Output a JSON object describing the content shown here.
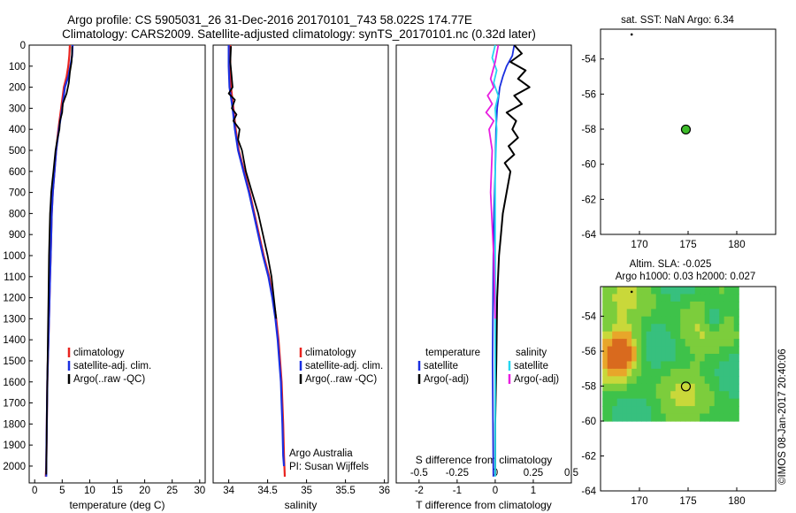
{
  "header": {
    "line1": "Argo profile: CS 5905031_26 31-Dec-2016 20170101_743 58.022S 174.77E",
    "line2": "Climatology: CARS2009. Satellite-adjusted climatology: synTS_20170101.nc (0.32d later)"
  },
  "colors": {
    "climatology": "#e8231f",
    "satellite": "#1a2fe0",
    "argo": "#000000",
    "salinity_satellite": "#25d7f0",
    "salinity_argo": "#e81ee0",
    "float_marker": "#3dbb2a"
  },
  "footer_credit": "©IMOS 08-Jan-2017 20:40:06",
  "chart_data": [
    {
      "type": "line",
      "id": "temperature",
      "xlabel": "temperature (deg C)",
      "xlim": [
        -1,
        31
      ],
      "xticks": [
        "0",
        "5",
        "10",
        "15",
        "20",
        "25",
        "30"
      ],
      "ylim": [
        0,
        2080
      ],
      "yticks": [
        "0",
        "100",
        "200",
        "300",
        "400",
        "500",
        "600",
        "700",
        "800",
        "900",
        "1000",
        "1100",
        "1200",
        "1300",
        "1400",
        "1500",
        "1600",
        "1700",
        "1800",
        "1900",
        "2000"
      ],
      "legend": [
        "climatology",
        "satellite-adj. clim.",
        "Argo(..raw -QC)"
      ],
      "series": [
        {
          "name": "climatology",
          "color_key": "climatology",
          "x": [
            6.4,
            6.3,
            6.1,
            5.8,
            5.3,
            4.8,
            4.3,
            3.9,
            3.6,
            3.3,
            3.1,
            2.9,
            2.8,
            2.7,
            2.6,
            2.5,
            2.4,
            2.3,
            2.2,
            2.1,
            2.0
          ],
          "y": [
            0,
            50,
            100,
            150,
            200,
            300,
            400,
            500,
            600,
            700,
            800,
            1000,
            1100,
            1200,
            1300,
            1400,
            1500,
            1600,
            1800,
            2000,
            2050
          ]
        },
        {
          "name": "satellite-adj. clim.",
          "color_key": "satellite",
          "x": [
            6.9,
            6.8,
            6.5,
            6.1,
            5.5,
            5.0,
            4.4,
            3.9,
            3.6,
            3.3,
            3.1,
            2.9,
            2.8,
            2.7,
            2.6,
            2.5,
            2.4,
            2.3,
            2.2,
            2.1,
            2.1
          ],
          "y": [
            0,
            50,
            100,
            150,
            200,
            300,
            400,
            500,
            600,
            700,
            800,
            1000,
            1100,
            1200,
            1300,
            1400,
            1500,
            1600,
            1800,
            2000,
            2050
          ]
        },
        {
          "name": "Argo(..raw -QC)",
          "color_key": "argo",
          "x": [
            6.8,
            6.8,
            6.7,
            6.4,
            6.2,
            5.8,
            5.1,
            5.0,
            4.6,
            4.5,
            4.1,
            3.8,
            3.6,
            3.4,
            3.2,
            3.0,
            2.9,
            2.8,
            2.7,
            2.6,
            2.5,
            2.4,
            2.3,
            2.2,
            2.1
          ],
          "y": [
            5,
            40,
            80,
            130,
            180,
            230,
            280,
            320,
            360,
            400,
            450,
            500,
            550,
            600,
            650,
            700,
            750,
            800,
            900,
            1000,
            1200,
            1400,
            1600,
            1800,
            2040
          ]
        }
      ]
    },
    {
      "type": "line",
      "id": "salinity",
      "xlabel": "salinity",
      "xlim": [
        33.8,
        36.05
      ],
      "xticks": [
        "34",
        "34.5",
        "35",
        "35.5",
        "36"
      ],
      "ylim": [
        0,
        2080
      ],
      "legend": [
        "climatology",
        "satellite-adj. clim.",
        "Argo(..raw -QC)"
      ],
      "annotation": [
        "Argo Australia",
        "PI: Susan Wijffels"
      ],
      "series": [
        {
          "name": "climatology",
          "color_key": "climatology",
          "x": [
            34.02,
            34.02,
            34.03,
            34.06,
            34.09,
            34.13,
            34.2,
            34.27,
            34.33,
            34.39,
            34.45,
            34.52,
            34.57,
            34.61,
            34.64,
            34.66,
            34.68,
            34.69,
            34.7,
            34.71,
            34.72
          ],
          "y": [
            0,
            100,
            200,
            300,
            400,
            500,
            600,
            700,
            800,
            900,
            1000,
            1100,
            1200,
            1300,
            1400,
            1500,
            1600,
            1700,
            1800,
            1950,
            2050
          ]
        },
        {
          "name": "satellite-adj. clim.",
          "color_key": "satellite",
          "x": [
            34.0,
            34.0,
            34.01,
            34.05,
            34.08,
            34.12,
            34.19,
            34.26,
            34.32,
            34.38,
            34.44,
            34.51,
            34.56,
            34.6,
            34.63,
            34.65,
            34.67,
            34.68,
            34.69,
            34.7,
            34.71
          ],
          "y": [
            0,
            100,
            200,
            300,
            400,
            500,
            600,
            700,
            800,
            900,
            1000,
            1100,
            1200,
            1300,
            1400,
            1500,
            1600,
            1700,
            1800,
            1950,
            2000
          ]
        },
        {
          "name": "Argo(..raw -QC)",
          "color_key": "argo",
          "x": [
            34.03,
            34.02,
            34.05,
            34.0,
            34.08,
            34.04,
            34.1,
            34.06,
            34.14,
            34.12,
            34.17,
            34.22,
            34.3,
            34.38,
            34.44,
            34.5,
            34.55,
            34.58,
            34.61
          ],
          "y": [
            5,
            80,
            200,
            230,
            260,
            300,
            330,
            360,
            400,
            450,
            500,
            600,
            700,
            800,
            900,
            1000,
            1100,
            1200,
            1300
          ]
        }
      ]
    },
    {
      "type": "line",
      "id": "difference",
      "xlabel": "T difference from climatology",
      "xlabel_top": "S difference from climatology",
      "xlim_T": [
        -2.6,
        2.0
      ],
      "xticks_T": [
        "-2",
        "-1",
        "0",
        "1"
      ],
      "xlim_S": [
        -0.65,
        0.5
      ],
      "xticks_S": [
        "-0.5",
        "-0.25",
        "0",
        "0.25",
        "0.5"
      ],
      "ylim": [
        0,
        2080
      ],
      "legend_temperature": [
        "temperature",
        "satellite",
        "Argo(-adj)"
      ],
      "legend_salinity": [
        "salinity",
        "satellite",
        "Argo(-adj)"
      ],
      "series": [
        {
          "name": "T satellite",
          "color_key": "satellite",
          "axis": "T",
          "x": [
            0.5,
            0.45,
            0.3,
            0.2,
            0.12,
            0.05,
            0.02,
            0.0,
            -0.03,
            -0.05,
            -0.07,
            -0.05
          ],
          "y": [
            0,
            50,
            100,
            150,
            200,
            300,
            400,
            600,
            800,
            1000,
            1500,
            2050
          ]
        },
        {
          "name": "T Argo(-adj)",
          "color_key": "argo",
          "axis": "T",
          "x": [
            0.5,
            0.7,
            0.4,
            0.8,
            0.6,
            0.9,
            0.5,
            0.7,
            0.3,
            0.55,
            0.45,
            0.6,
            0.35,
            0.5,
            0.25,
            0.4,
            0.3,
            0.2,
            0.15,
            0.1,
            0.05,
            0.03,
            0.0,
            0.0
          ],
          "y": [
            0,
            40,
            80,
            120,
            160,
            200,
            240,
            280,
            320,
            360,
            400,
            440,
            480,
            520,
            560,
            600,
            700,
            800,
            900,
            1000,
            1200,
            1500,
            1800,
            2040
          ]
        },
        {
          "name": "S satellite",
          "color_key": "salinity_satellite",
          "axis": "S",
          "x": [
            0.0,
            -0.02,
            0.01,
            -0.01,
            0.02,
            0.0,
            0.01,
            0.0,
            0.0,
            0.0,
            0.0
          ],
          "y": [
            0,
            60,
            120,
            180,
            240,
            300,
            400,
            600,
            1000,
            1500,
            2050
          ]
        },
        {
          "name": "S Argo(-adj)",
          "color_key": "salinity_argo",
          "axis": "S",
          "x": [
            0.02,
            0.0,
            -0.03,
            -0.01,
            -0.05,
            -0.02,
            -0.06,
            -0.01,
            -0.04,
            -0.02,
            -0.03,
            -0.01,
            0.0
          ],
          "y": [
            0,
            80,
            160,
            200,
            240,
            280,
            320,
            360,
            400,
            500,
            700,
            1000,
            1300
          ]
        }
      ]
    },
    {
      "type": "scatter",
      "id": "sst-map",
      "title": "sat. SST: NaN Argo: 6.34",
      "xlim": [
        166,
        184
      ],
      "xticks": [
        "170",
        "175",
        "180"
      ],
      "ylim": [
        -64,
        -52.3
      ],
      "yticks": [
        "-54",
        "-56",
        "-58",
        "-60",
        "-62",
        "-64"
      ],
      "points": [
        {
          "lon": 174.77,
          "lat": -58.02,
          "kind": "float"
        },
        {
          "lon": 169.2,
          "lat": -52.6,
          "kind": "dot"
        }
      ]
    },
    {
      "type": "heatmap",
      "id": "altimetry-map",
      "title": "Altim. SLA: -0.025",
      "subtitle": "Argo h1000: 0.03 h2000: 0.027",
      "xlim": [
        166,
        184
      ],
      "xticks": [
        "170",
        "175",
        "180"
      ],
      "ylim": [
        -64,
        -52.3
      ],
      "yticks": [
        "-54",
        "-56",
        "-58",
        "-60",
        "-62",
        "-64"
      ],
      "field_extent": {
        "lon": [
          166.2,
          180.2
        ],
        "lat": [
          -60.0,
          -52.3
        ]
      },
      "points": [
        {
          "lon": 174.77,
          "lat": -58.02,
          "kind": "float"
        },
        {
          "lon": 169.2,
          "lat": -52.6,
          "kind": "dot"
        }
      ]
    }
  ]
}
